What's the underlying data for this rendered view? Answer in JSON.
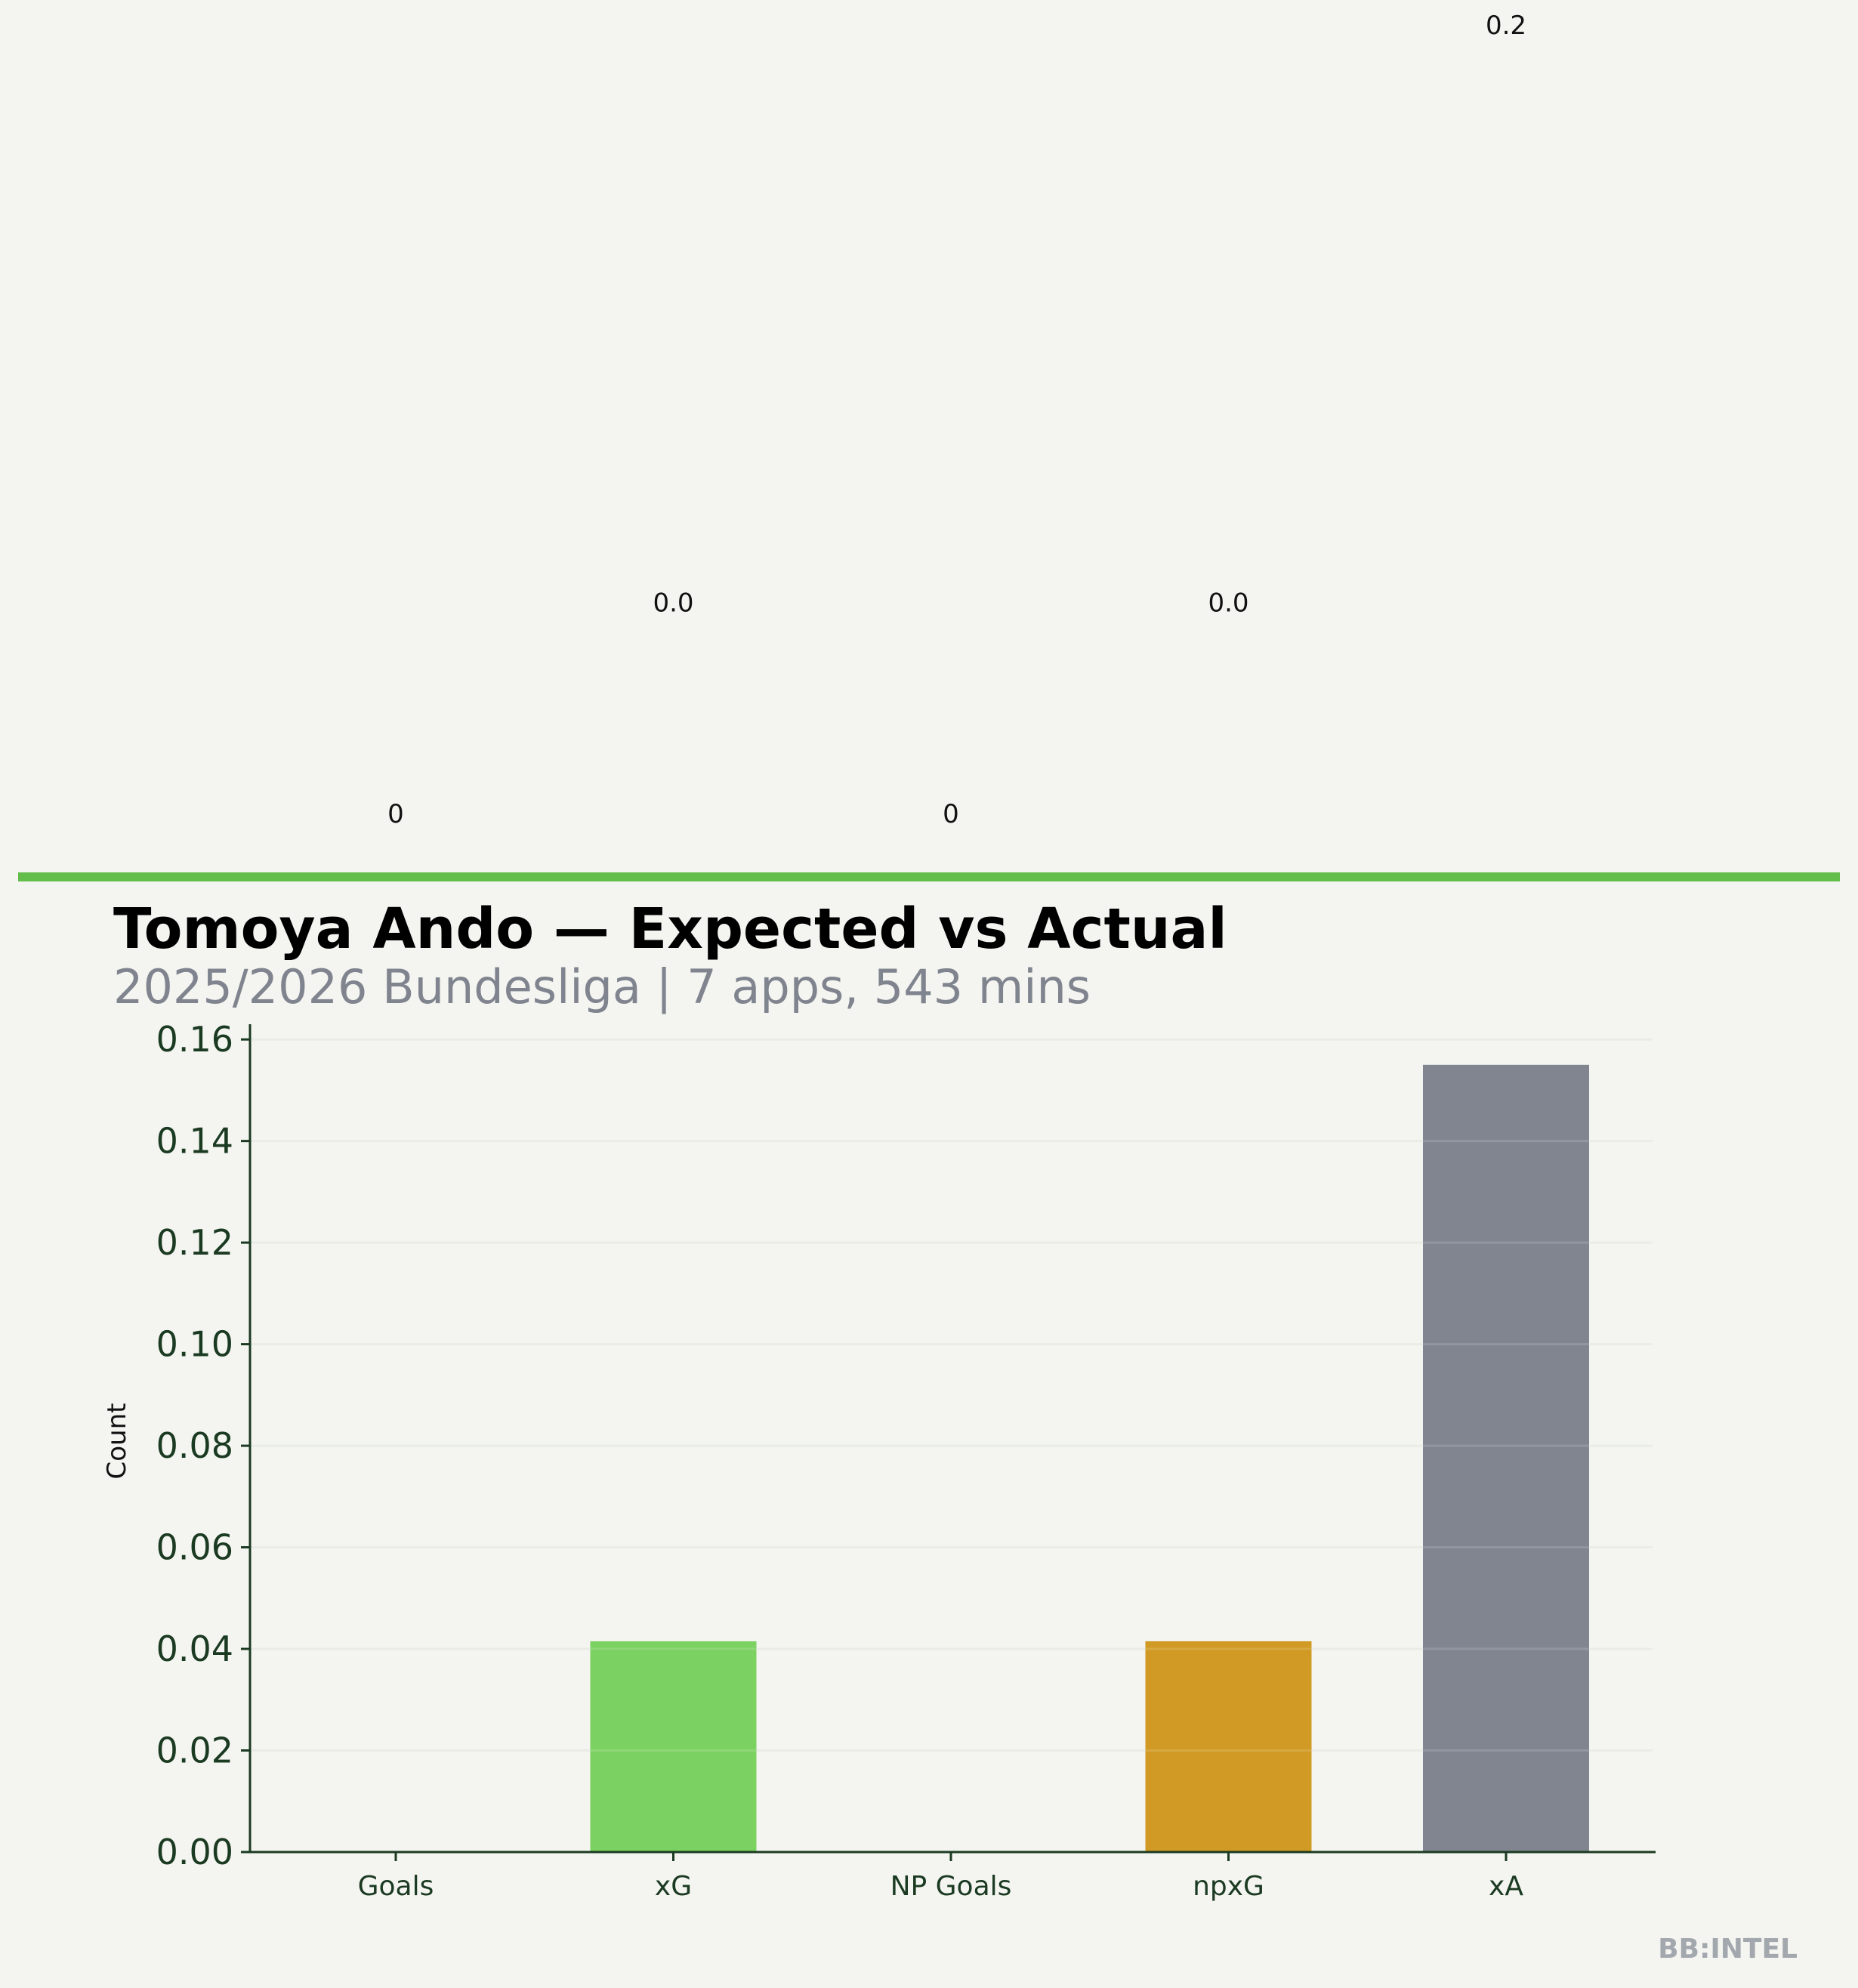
{
  "chart_data": {
    "type": "bar",
    "title": "Tomoya Ando — Expected vs Actual",
    "subtitle": "2025/2026 Bundesliga | 7 apps, 543 mins",
    "xlabel": "",
    "ylabel": "Count",
    "categories": [
      "Goals",
      "xG",
      "NP Goals",
      "npxG",
      "xA"
    ],
    "values": [
      0,
      0.0415,
      0,
      0.0415,
      0.155
    ],
    "data_labels": [
      "0",
      "0.0",
      "0",
      "0.0",
      "0.2"
    ],
    "bar_colors": [
      "#7bd162",
      "#7bd162",
      "#7bd162",
      "#d19a24",
      "#80858f"
    ],
    "ylim": [
      0,
      0.163
    ],
    "yticks": [
      0,
      0.02,
      0.04,
      0.06,
      0.08,
      0.1,
      0.12,
      0.14,
      0.16
    ],
    "ytick_labels": [
      "0.00",
      "0.02",
      "0.04",
      "0.06",
      "0.08",
      "0.10",
      "0.12",
      "0.14",
      "0.16"
    ],
    "grid": true,
    "legend": "none"
  },
  "accent_color": "#62bd4a",
  "watermark": "BB:INTEL"
}
